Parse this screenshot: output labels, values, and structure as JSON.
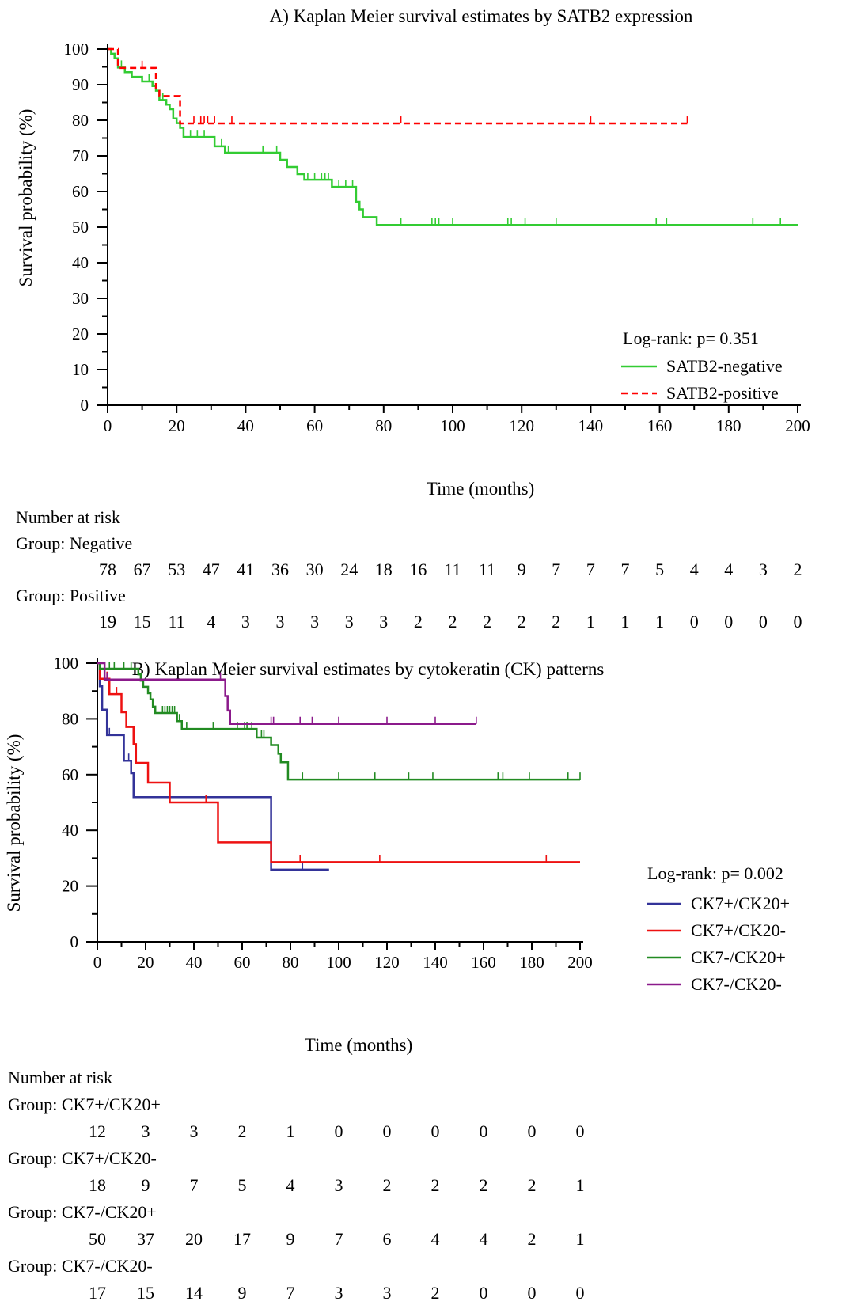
{
  "chart_data": [
    {
      "type": "line",
      "subtype": "kaplan-meier",
      "title": "A) Kaplan Meier survival estimates by SATB2 expression",
      "xlabel": "Time (months)",
      "ylabel": "Survival probability (%)",
      "xlim": [
        0,
        200
      ],
      "ylim": [
        0,
        100
      ],
      "xticks": [
        0,
        20,
        40,
        60,
        80,
        100,
        120,
        140,
        160,
        180,
        200
      ],
      "yticks": [
        0,
        10,
        20,
        30,
        40,
        50,
        60,
        70,
        80,
        90,
        100
      ],
      "legend": {
        "title": "Log-rank: p= 0.351",
        "position": "bottom-right",
        "entries": [
          "SATB2-negative",
          "SATB2-positive"
        ]
      },
      "series": [
        {
          "name": "SATB2-negative",
          "color": "#33cc33",
          "dash": false,
          "steps": [
            [
              0,
              100
            ],
            [
              1,
              98.7
            ],
            [
              2,
              97.4
            ],
            [
              3,
              94.8
            ],
            [
              5,
              93.5
            ],
            [
              7,
              92.2
            ],
            [
              10,
              90.9
            ],
            [
              13,
              89.6
            ],
            [
              14,
              88.3
            ],
            [
              15,
              85.7
            ],
            [
              17,
              84.4
            ],
            [
              18,
              83.1
            ],
            [
              19,
              80.5
            ],
            [
              20,
              79.2
            ],
            [
              21,
              77.9
            ],
            [
              22,
              75.3
            ],
            [
              31,
              72.7
            ],
            [
              34,
              70.9
            ],
            [
              50,
              68.9
            ],
            [
              52,
              66.9
            ],
            [
              55,
              64.9
            ],
            [
              57,
              63.3
            ],
            [
              65,
              61.3
            ],
            [
              72,
              57.1
            ],
            [
              73,
              55.0
            ],
            [
              74,
              52.8
            ],
            [
              78,
              50.6
            ],
            [
              200,
              50.6
            ]
          ],
          "censored": [
            4,
            12,
            16,
            24,
            26,
            28,
            33,
            35,
            45,
            49,
            58,
            60,
            62,
            63,
            64,
            67,
            69,
            71,
            85,
            94,
            95,
            96,
            100,
            116,
            117,
            121,
            130,
            159,
            162,
            187,
            195
          ]
        },
        {
          "name": "SATB2-positive",
          "color": "#ff0000",
          "dash": true,
          "steps": [
            [
              0,
              100
            ],
            [
              3,
              94.7
            ],
            [
              14,
              89.0
            ],
            [
              15,
              86.8
            ],
            [
              21,
              79.1
            ],
            [
              168,
              79.1
            ]
          ],
          "censored": [
            10,
            25,
            27,
            28,
            29,
            31,
            36,
            85,
            140,
            168
          ]
        }
      ],
      "risk_table": {
        "heading": "Number at risk",
        "times": [
          0,
          10,
          20,
          30,
          40,
          50,
          60,
          70,
          80,
          90,
          100,
          110,
          120,
          130,
          140,
          150,
          160,
          170,
          180,
          190,
          200
        ],
        "groups": [
          {
            "label": "Group: Negative",
            "counts": [
              78,
              67,
              53,
              47,
              41,
              36,
              30,
              24,
              18,
              16,
              11,
              11,
              9,
              7,
              7,
              7,
              5,
              4,
              4,
              3,
              2
            ]
          },
          {
            "label": "Group: Positive",
            "counts": [
              19,
              15,
              11,
              4,
              3,
              3,
              3,
              3,
              3,
              2,
              2,
              2,
              2,
              2,
              1,
              1,
              1,
              0,
              0,
              0,
              0
            ]
          }
        ]
      }
    },
    {
      "type": "line",
      "subtype": "kaplan-meier",
      "title": "B) Kaplan Meier survival estimates by cytokeratin (CK) patterns",
      "xlabel": "Time (months)",
      "ylabel": "Survival probability (%)",
      "xlim": [
        0,
        200
      ],
      "ylim": [
        0,
        100
      ],
      "xticks": [
        0,
        20,
        40,
        60,
        80,
        100,
        120,
        140,
        160,
        180,
        200
      ],
      "yticks": [
        0,
        20,
        40,
        60,
        80,
        100
      ],
      "legend": {
        "title": "Log-rank: p= 0.002",
        "position": "right",
        "entries": [
          "CK7+/CK20+",
          "CK7+/CK20-",
          "CK7-/CK20+",
          "CK7-/CK20-"
        ]
      },
      "series": [
        {
          "name": "CK7+/CK20+",
          "color": "#333399",
          "dash": false,
          "steps": [
            [
              0,
              100
            ],
            [
              1,
              91.7
            ],
            [
              2,
              83.3
            ],
            [
              4,
              74.2
            ],
            [
              11,
              65.0
            ],
            [
              14,
              60.5
            ],
            [
              15,
              51.9
            ],
            [
              72,
              25.9
            ],
            [
              96,
              25.9
            ]
          ],
          "censored": [
            5,
            13,
            15,
            85
          ]
        },
        {
          "name": "CK7+/CK20-",
          "color": "#ee1111",
          "dash": false,
          "steps": [
            [
              0,
              100
            ],
            [
              1,
              94.4
            ],
            [
              5,
              88.9
            ],
            [
              10,
              82.4
            ],
            [
              12,
              77.1
            ],
            [
              15,
              70.9
            ],
            [
              16,
              64.2
            ],
            [
              21,
              57.1
            ],
            [
              30,
              50.0
            ],
            [
              50,
              35.7
            ],
            [
              72,
              28.6
            ],
            [
              200,
              28.6
            ]
          ],
          "censored": [
            4,
            8,
            45,
            84,
            117,
            186
          ]
        },
        {
          "name": "CK7-/CK20+",
          "color": "#228B22",
          "dash": false,
          "steps": [
            [
              0,
              100
            ],
            [
              1,
              98.0
            ],
            [
              17,
              96.0
            ],
            [
              18,
              93.7
            ],
            [
              19,
              91.5
            ],
            [
              21,
              89.2
            ],
            [
              22,
              87.0
            ],
            [
              23,
              84.4
            ],
            [
              24,
              82.1
            ],
            [
              33,
              79.2
            ],
            [
              35,
              76.4
            ],
            [
              66,
              73.3
            ],
            [
              72,
              70.6
            ],
            [
              75,
              67.5
            ],
            [
              76,
              64.4
            ],
            [
              79,
              58.2
            ],
            [
              200,
              58.2
            ]
          ],
          "censored": [
            5,
            7,
            11,
            14,
            27,
            28,
            29,
            30,
            31,
            32,
            34,
            35,
            37,
            48,
            58,
            61,
            62,
            64,
            68,
            69,
            85,
            100,
            115,
            129,
            139,
            166,
            168,
            179,
            195,
            200
          ]
        },
        {
          "name": "CK7-/CK20-",
          "color": "#8b1a8b",
          "dash": false,
          "steps": [
            [
              0,
              100
            ],
            [
              3,
              94.1
            ],
            [
              53,
              88.2
            ],
            [
              54,
              83.0
            ],
            [
              55,
              78.2
            ],
            [
              157,
              78.2
            ]
          ],
          "censored": [
            4,
            51,
            72,
            73,
            84,
            89,
            100,
            120,
            140,
            157
          ]
        }
      ],
      "risk_table": {
        "heading": "Number at risk",
        "times": [
          0,
          20,
          40,
          60,
          80,
          100,
          120,
          140,
          160,
          180,
          200
        ],
        "groups": [
          {
            "label": "Group: CK7+/CK20+",
            "counts": [
              12,
              3,
              3,
              2,
              1,
              0,
              0,
              0,
              0,
              0,
              0
            ]
          },
          {
            "label": "Group: CK7+/CK20-",
            "counts": [
              18,
              9,
              7,
              5,
              4,
              3,
              2,
              2,
              2,
              2,
              1
            ]
          },
          {
            "label": "Group: CK7-/CK20+",
            "counts": [
              50,
              37,
              20,
              17,
              9,
              7,
              6,
              4,
              4,
              2,
              1
            ]
          },
          {
            "label": "Group: CK7-/CK20-",
            "counts": [
              17,
              15,
              14,
              9,
              7,
              3,
              3,
              2,
              0,
              0,
              0
            ]
          }
        ]
      }
    }
  ]
}
